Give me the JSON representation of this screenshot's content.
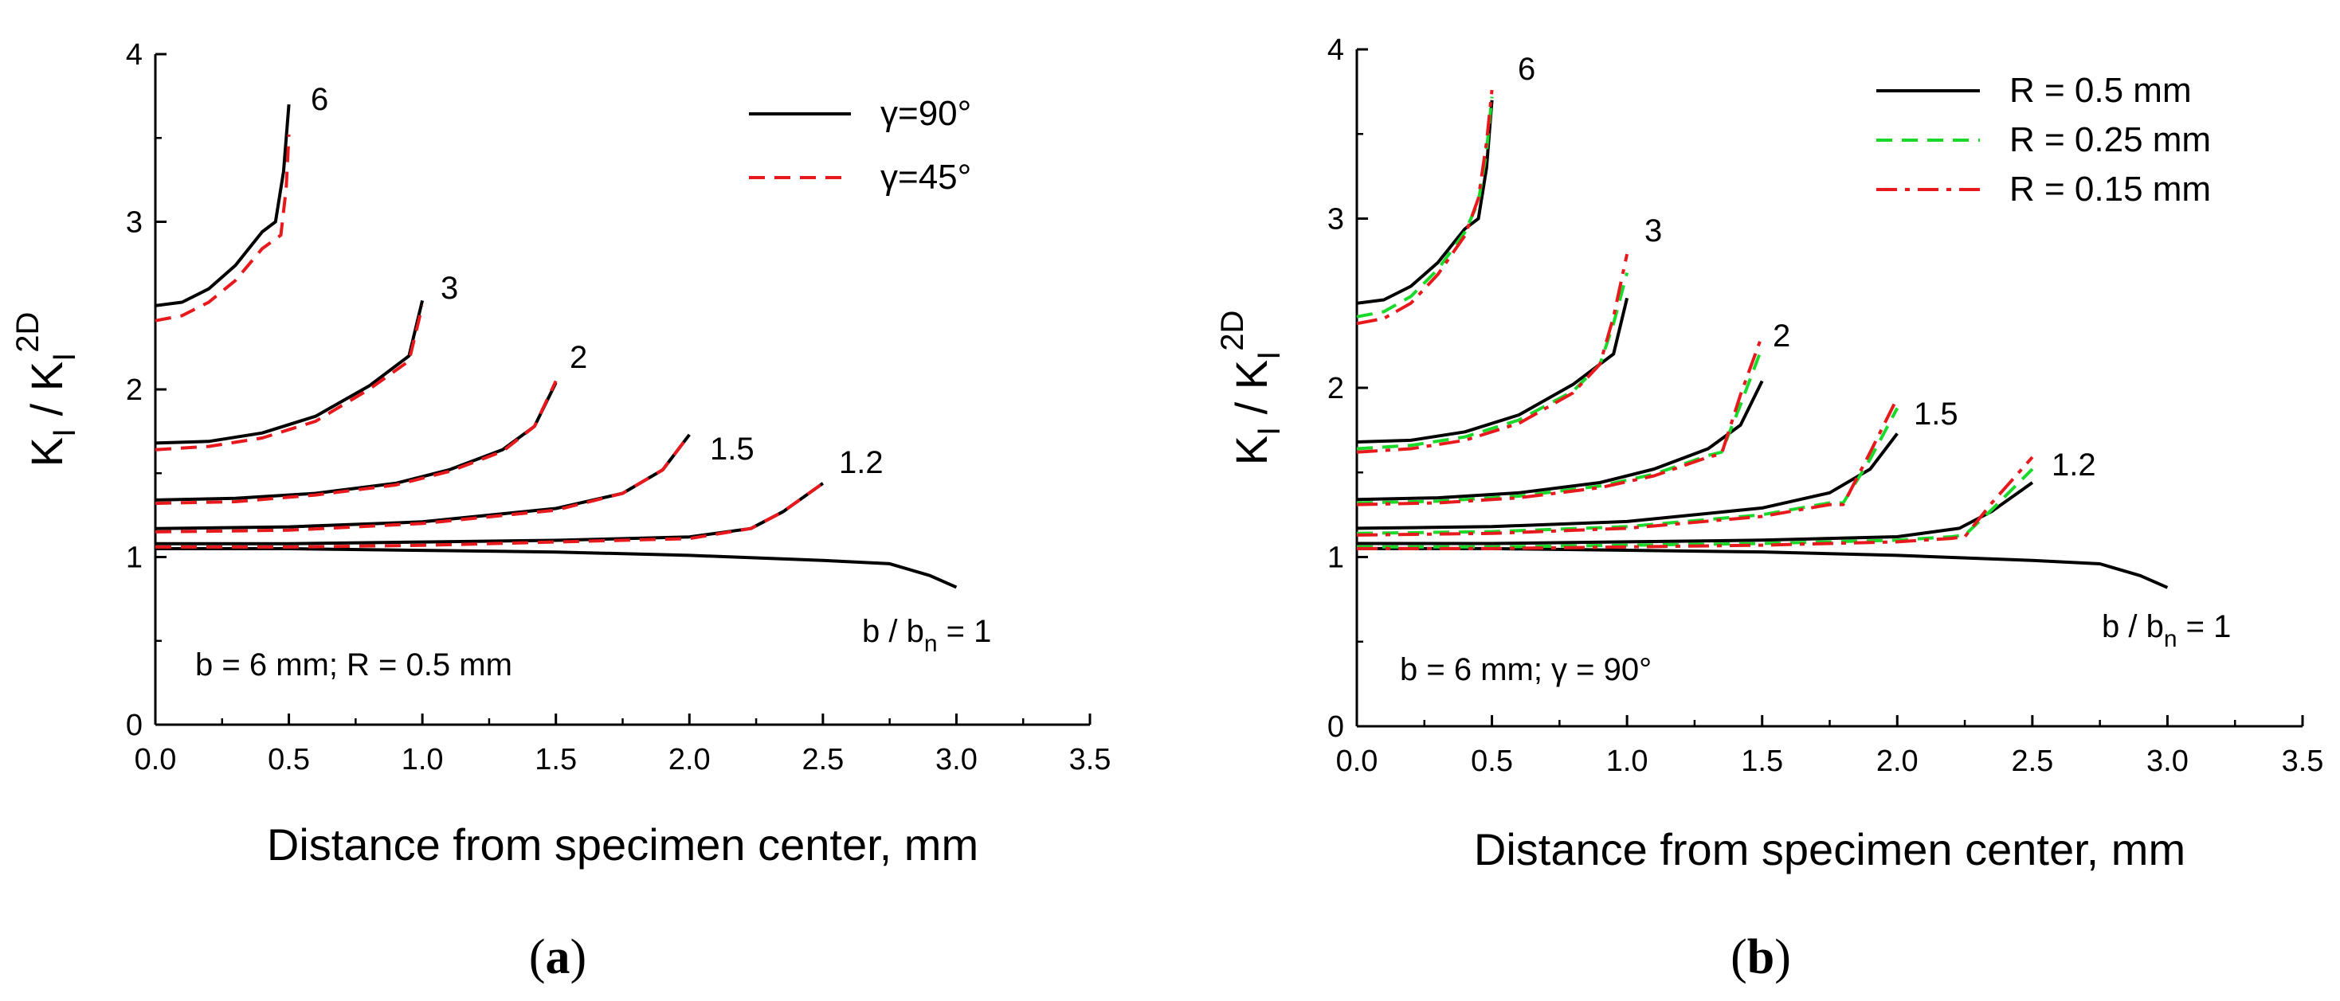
{
  "colors": {
    "black": "#000000",
    "red": "#e8191c",
    "green": "#19d92a"
  },
  "chart_data": [
    {
      "type": "line",
      "panel": "a",
      "panel_label": "a",
      "xlabel": "Distance from specimen center, mm",
      "ylabel": {
        "main": "K",
        "sub": "I",
        "sep": " / K",
        "sub2": "I",
        "sup2": "2D"
      },
      "xlim": [
        0,
        3.5
      ],
      "ylim": [
        0,
        4
      ],
      "xticks": [
        "0.0",
        "0.5",
        "1.0",
        "1.5",
        "2.0",
        "2.5",
        "3.0",
        "3.5"
      ],
      "yticks": [
        "0",
        "1",
        "2",
        "3",
        "4"
      ],
      "legend": {
        "placement": "top-right",
        "entries": [
          {
            "name": "γ=90°",
            "style": "solid",
            "color": "#000000"
          },
          {
            "name": "γ=45°",
            "style": "dashed",
            "color": "#e8191c"
          }
        ]
      },
      "annotations": {
        "note": "b = 6 mm; R = 0.5 mm",
        "ratio_label": {
          "pre": "b / b",
          "sub": "n",
          "post": " = 1"
        },
        "curve_labels": [
          "6",
          "3",
          "2",
          "1.5",
          "1.2"
        ]
      },
      "series": [
        {
          "name": "γ=90°",
          "style": "solid",
          "color": "#000000",
          "curves": [
            {
              "ratio": "6",
              "x": [
                0,
                0.1,
                0.2,
                0.3,
                0.4,
                0.45,
                0.48,
                0.5
              ],
              "y": [
                2.5,
                2.52,
                2.6,
                2.74,
                2.94,
                3.0,
                3.3,
                3.7
              ]
            },
            {
              "ratio": "3",
              "x": [
                0,
                0.2,
                0.4,
                0.6,
                0.8,
                0.95,
                1.0
              ],
              "y": [
                1.68,
                1.69,
                1.74,
                1.84,
                2.02,
                2.2,
                2.53
              ]
            },
            {
              "ratio": "2",
              "x": [
                0,
                0.3,
                0.6,
                0.9,
                1.1,
                1.3,
                1.42,
                1.5
              ],
              "y": [
                1.34,
                1.35,
                1.38,
                1.44,
                1.52,
                1.64,
                1.78,
                2.04
              ]
            },
            {
              "ratio": "1.5",
              "x": [
                0,
                0.5,
                1.0,
                1.5,
                1.75,
                1.9,
                2.0
              ],
              "y": [
                1.17,
                1.18,
                1.21,
                1.29,
                1.38,
                1.52,
                1.73
              ]
            },
            {
              "ratio": "1.2",
              "x": [
                0,
                0.5,
                1.0,
                1.5,
                2.0,
                2.23,
                2.35,
                2.5
              ],
              "y": [
                1.08,
                1.08,
                1.09,
                1.1,
                1.12,
                1.17,
                1.27,
                1.44
              ]
            },
            {
              "ratio": "1",
              "x": [
                0,
                0.5,
                1.0,
                1.5,
                2.0,
                2.5,
                2.75,
                2.9,
                3.0
              ],
              "y": [
                1.05,
                1.05,
                1.04,
                1.03,
                1.01,
                0.98,
                0.96,
                0.89,
                0.82
              ]
            }
          ]
        },
        {
          "name": "γ=45°",
          "style": "dashed",
          "color": "#e8191c",
          "curves": [
            {
              "ratio": "6",
              "x": [
                0,
                0.1,
                0.2,
                0.3,
                0.4,
                0.47,
                0.49,
                0.5
              ],
              "y": [
                2.41,
                2.44,
                2.52,
                2.65,
                2.84,
                2.92,
                3.2,
                3.52
              ]
            },
            {
              "ratio": "3",
              "x": [
                0,
                0.2,
                0.4,
                0.6,
                0.8,
                0.95,
                1.0
              ],
              "y": [
                1.64,
                1.66,
                1.71,
                1.81,
                2.0,
                2.17,
                2.5
              ]
            },
            {
              "ratio": "2",
              "x": [
                0,
                0.3,
                0.6,
                0.9,
                1.1,
                1.3,
                1.42,
                1.5
              ],
              "y": [
                1.32,
                1.33,
                1.37,
                1.43,
                1.51,
                1.63,
                1.78,
                2.05
              ]
            },
            {
              "ratio": "1.5",
              "x": [
                0,
                0.5,
                1.0,
                1.5,
                1.75,
                1.9,
                2.0
              ],
              "y": [
                1.15,
                1.16,
                1.2,
                1.28,
                1.38,
                1.52,
                1.73
              ]
            },
            {
              "ratio": "1.2",
              "x": [
                0,
                0.5,
                1.0,
                1.5,
                2.0,
                2.23,
                2.35,
                2.5
              ],
              "y": [
                1.06,
                1.06,
                1.07,
                1.09,
                1.11,
                1.17,
                1.27,
                1.44
              ]
            }
          ]
        }
      ]
    },
    {
      "type": "line",
      "panel": "b",
      "panel_label": "b",
      "xlabel": "Distance from specimen center, mm",
      "ylabel": {
        "main": "K",
        "sub": "I",
        "sep": " / K",
        "sub2": "I",
        "sup2": "2D"
      },
      "xlim": [
        0,
        3.5
      ],
      "ylim": [
        0,
        4
      ],
      "xticks": [
        "0.0",
        "0.5",
        "1.0",
        "1.5",
        "2.0",
        "2.5",
        "3.0",
        "3.5"
      ],
      "yticks": [
        "0",
        "1",
        "2",
        "3",
        "4"
      ],
      "legend": {
        "placement": "top-right",
        "entries": [
          {
            "name": "R = 0.5 mm",
            "style": "solid",
            "color": "#000000"
          },
          {
            "name": "R = 0.25 mm",
            "style": "dashed",
            "color": "#19d92a"
          },
          {
            "name": "R = 0.15 mm",
            "style": "dashdot",
            "color": "#e8191c"
          }
        ]
      },
      "annotations": {
        "note": "b = 6 mm;  γ = 90°",
        "ratio_label": {
          "pre": "b / b",
          "sub": "n",
          "post": " = 1"
        },
        "curve_labels": [
          "6",
          "3",
          "2",
          "1.5",
          "1.2"
        ]
      },
      "series": [
        {
          "name": "R = 0.5 mm",
          "style": "solid",
          "color": "#000000",
          "curves": [
            {
              "ratio": "6",
              "x": [
                0,
                0.1,
                0.2,
                0.3,
                0.4,
                0.45,
                0.48,
                0.5
              ],
              "y": [
                2.5,
                2.52,
                2.6,
                2.74,
                2.94,
                3.0,
                3.3,
                3.7
              ]
            },
            {
              "ratio": "3",
              "x": [
                0,
                0.2,
                0.4,
                0.6,
                0.8,
                0.95,
                1.0
              ],
              "y": [
                1.68,
                1.69,
                1.74,
                1.84,
                2.02,
                2.2,
                2.53
              ]
            },
            {
              "ratio": "2",
              "x": [
                0,
                0.3,
                0.6,
                0.9,
                1.1,
                1.3,
                1.42,
                1.5
              ],
              "y": [
                1.34,
                1.35,
                1.38,
                1.44,
                1.52,
                1.64,
                1.78,
                2.04
              ]
            },
            {
              "ratio": "1.5",
              "x": [
                0,
                0.5,
                1.0,
                1.5,
                1.75,
                1.9,
                2.0
              ],
              "y": [
                1.17,
                1.18,
                1.21,
                1.29,
                1.38,
                1.52,
                1.73
              ]
            },
            {
              "ratio": "1.2",
              "x": [
                0,
                0.5,
                1.0,
                1.5,
                2.0,
                2.23,
                2.35,
                2.5
              ],
              "y": [
                1.08,
                1.08,
                1.09,
                1.1,
                1.12,
                1.17,
                1.27,
                1.44
              ]
            },
            {
              "ratio": "1",
              "x": [
                0,
                0.5,
                1.0,
                1.5,
                2.0,
                2.5,
                2.75,
                2.9,
                3.0
              ],
              "y": [
                1.05,
                1.05,
                1.04,
                1.03,
                1.01,
                0.98,
                0.96,
                0.89,
                0.82
              ]
            }
          ]
        },
        {
          "name": "R = 0.25 mm",
          "style": "dashed",
          "color": "#19d92a",
          "curves": [
            {
              "ratio": "6",
              "x": [
                0,
                0.1,
                0.2,
                0.3,
                0.4,
                0.45,
                0.48,
                0.5
              ],
              "y": [
                2.42,
                2.45,
                2.54,
                2.7,
                2.92,
                3.1,
                3.4,
                3.72
              ]
            },
            {
              "ratio": "3",
              "x": [
                0,
                0.2,
                0.4,
                0.6,
                0.8,
                0.9,
                0.95,
                1.0
              ],
              "y": [
                1.64,
                1.66,
                1.71,
                1.81,
                1.98,
                2.14,
                2.38,
                2.68
              ]
            },
            {
              "ratio": "2",
              "x": [
                0,
                0.3,
                0.6,
                0.9,
                1.1,
                1.3,
                1.35,
                1.42,
                1.5
              ],
              "y": [
                1.32,
                1.33,
                1.36,
                1.42,
                1.49,
                1.6,
                1.62,
                1.9,
                2.24
              ]
            },
            {
              "ratio": "1.5",
              "x": [
                0,
                0.5,
                1.0,
                1.5,
                1.75,
                1.8,
                1.9,
                2.0
              ],
              "y": [
                1.14,
                1.15,
                1.18,
                1.25,
                1.32,
                1.32,
                1.58,
                1.88
              ]
            },
            {
              "ratio": "1.2",
              "x": [
                0,
                0.5,
                1.0,
                1.5,
                2.0,
                2.2,
                2.25,
                2.35,
                2.5
              ],
              "y": [
                1.06,
                1.06,
                1.07,
                1.08,
                1.1,
                1.12,
                1.13,
                1.28,
                1.52
              ]
            }
          ]
        },
        {
          "name": "R = 0.15 mm",
          "style": "dashdot",
          "color": "#e8191c",
          "curves": [
            {
              "ratio": "6",
              "x": [
                0,
                0.1,
                0.2,
                0.3,
                0.4,
                0.45,
                0.48,
                0.5
              ],
              "y": [
                2.38,
                2.41,
                2.5,
                2.67,
                2.9,
                3.12,
                3.45,
                3.76
              ]
            },
            {
              "ratio": "3",
              "x": [
                0,
                0.2,
                0.4,
                0.6,
                0.8,
                0.9,
                0.95,
                1.0
              ],
              "y": [
                1.62,
                1.64,
                1.69,
                1.79,
                1.97,
                2.14,
                2.42,
                2.79
              ]
            },
            {
              "ratio": "2",
              "x": [
                0,
                0.3,
                0.6,
                0.9,
                1.1,
                1.3,
                1.35,
                1.42,
                1.5
              ],
              "y": [
                1.31,
                1.32,
                1.35,
                1.41,
                1.48,
                1.59,
                1.61,
                1.96,
                2.31
              ]
            },
            {
              "ratio": "1.5",
              "x": [
                0,
                0.5,
                1.0,
                1.5,
                1.75,
                1.8,
                1.9,
                2.0
              ],
              "y": [
                1.13,
                1.14,
                1.17,
                1.24,
                1.31,
                1.31,
                1.62,
                1.94
              ]
            },
            {
              "ratio": "1.2",
              "x": [
                0,
                0.5,
                1.0,
                1.5,
                2.0,
                2.2,
                2.25,
                2.35,
                2.5
              ],
              "y": [
                1.05,
                1.05,
                1.06,
                1.07,
                1.09,
                1.11,
                1.12,
                1.32,
                1.59
              ]
            }
          ]
        }
      ]
    }
  ]
}
